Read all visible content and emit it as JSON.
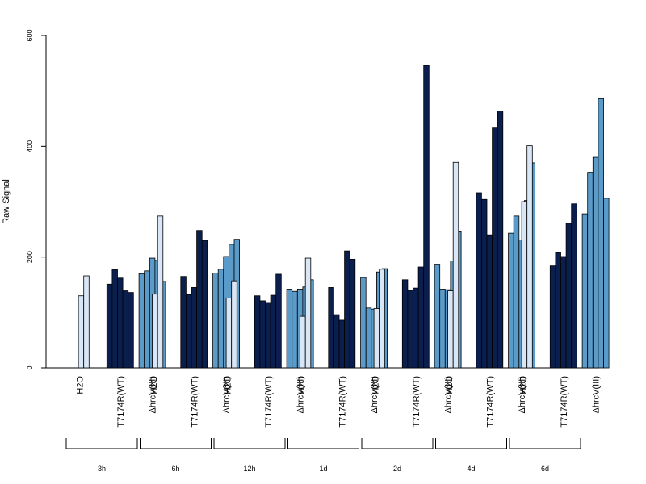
{
  "chart_data": {
    "type": "bar",
    "ylabel": "Raw Signal",
    "ylim": [
      0,
      600
    ],
    "yticks": [
      0,
      200,
      400,
      600
    ],
    "colors": {
      "H2O": "#d9e6f5",
      "T7174R(WT)": "#0b1f4f",
      "ΔhrcV(III)": "#5b9bc9"
    },
    "timepoints": [
      "3h",
      "6h",
      "12h",
      "1d",
      "2d",
      "4d",
      "6d"
    ],
    "group_labels": [
      "H2O",
      "T7174R(WT)",
      "ΔhrcV(III)"
    ],
    "series_by_timepoint": [
      {
        "time": "3h",
        "groups": [
          {
            "name": "H2O",
            "values": [
              0,
              130,
              166
            ]
          },
          {
            "name": "T7174R(WT)",
            "values": [
              151,
              177,
              162,
              139,
              136
            ]
          },
          {
            "name": "ΔhrcV(III)",
            "values": [
              170,
              175,
              198,
              194,
              156
            ]
          }
        ]
      },
      {
        "time": "6h",
        "groups": [
          {
            "name": "H2O",
            "values": [
              0,
              133,
              274
            ]
          },
          {
            "name": "T7174R(WT)",
            "values": [
              165,
              132,
              145,
              248,
              230
            ]
          },
          {
            "name": "ΔhrcV(III)",
            "values": [
              171,
              178,
              201,
              223,
              232
            ]
          }
        ]
      },
      {
        "time": "12h",
        "groups": [
          {
            "name": "H2O",
            "values": [
              0,
              126,
              157
            ]
          },
          {
            "name": "T7174R(WT)",
            "values": [
              130,
              121,
              118,
              131,
              169
            ]
          },
          {
            "name": "ΔhrcV(III)",
            "values": [
              142,
              138,
              142,
              146,
              159
            ]
          }
        ]
      },
      {
        "time": "1d",
        "groups": [
          {
            "name": "H2O",
            "values": [
              0,
              93,
              198
            ]
          },
          {
            "name": "T7174R(WT)",
            "values": [
              145,
              96,
              86,
              211,
              196
            ]
          },
          {
            "name": "ΔhrcV(III)",
            "values": [
              163,
              108,
              106,
              173,
              179
            ]
          }
        ]
      },
      {
        "time": "2d",
        "groups": [
          {
            "name": "H2O",
            "values": [
              0,
              107,
              178
            ]
          },
          {
            "name": "T7174R(WT)",
            "values": [
              159,
              140,
              144,
              182,
              546
            ]
          },
          {
            "name": "ΔhrcV(III)",
            "values": [
              187,
              142,
              141,
              193,
              247
            ]
          }
        ]
      },
      {
        "time": "4d",
        "groups": [
          {
            "name": "H2O",
            "values": [
              0,
              139,
              371
            ]
          },
          {
            "name": "T7174R(WT)",
            "values": [
              316,
              304,
              240,
              433,
              464
            ]
          },
          {
            "name": "ΔhrcV(III)",
            "values": [
              243,
              274,
              231,
              302,
              370
            ]
          }
        ]
      },
      {
        "time": "6d",
        "groups": [
          {
            "name": "H2O",
            "values": [
              0,
              300,
              401
            ]
          },
          {
            "name": "T7174R(WT)",
            "values": [
              184,
              208,
              201,
              261,
              296
            ]
          },
          {
            "name": "ΔhrcV(III)",
            "values": [
              278,
              353,
              380,
              486,
              306
            ]
          }
        ]
      }
    ]
  }
}
